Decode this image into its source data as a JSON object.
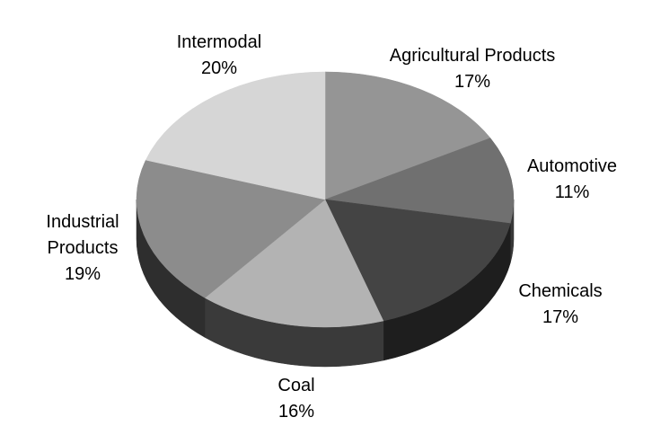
{
  "chart_data": {
    "type": "pie",
    "title": "",
    "style": "3d",
    "slices": [
      {
        "name": "Agricultural Products",
        "label_lines": [
          "Agricultural Products"
        ],
        "value": 17,
        "value_label": "17%",
        "color": "#959595",
        "side_color": "#4a4a4a"
      },
      {
        "name": "Automotive",
        "label_lines": [
          "Automotive"
        ],
        "value": 11,
        "value_label": "11%",
        "color": "#707070",
        "side_color": "#383838"
      },
      {
        "name": "Chemicals",
        "label_lines": [
          "Chemicals"
        ],
        "value": 17,
        "value_label": "17%",
        "color": "#444444",
        "side_color": "#1e1e1e"
      },
      {
        "name": "Coal",
        "label_lines": [
          "Coal"
        ],
        "value": 16,
        "value_label": "16%",
        "color": "#b3b3b3",
        "side_color": "#3a3a3a"
      },
      {
        "name": "Industrial Products",
        "label_lines": [
          "Industrial",
          "Products"
        ],
        "value": 19,
        "value_label": "19%",
        "color": "#8c8c8c",
        "side_color": "#2e2e2e"
      },
      {
        "name": "Intermodal",
        "label_lines": [
          "Intermodal"
        ],
        "value": 20,
        "value_label": "20%",
        "color": "#d6d6d6",
        "side_color": "#444444"
      }
    ]
  }
}
